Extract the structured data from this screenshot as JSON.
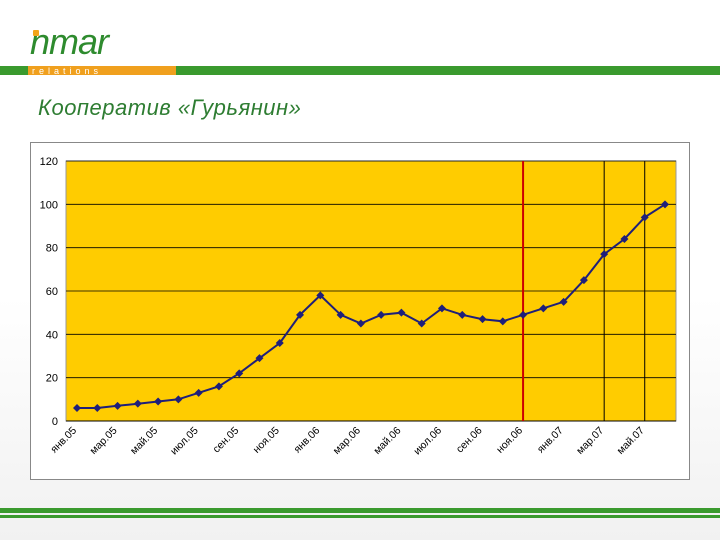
{
  "header": {
    "logo_text": "nmar",
    "logo_sub": "relations",
    "title": "Кооператив «Гурьянин»"
  },
  "colors": {
    "plot_bg": "#FFCC00",
    "line": "#1F1F7A",
    "marker_line": "#CC0000",
    "brand_green": "#3A9A2E",
    "brand_orange": "#F0A01E"
  },
  "chart_data": {
    "type": "line",
    "title": "",
    "xlabel": "",
    "ylabel": "",
    "ylim": [
      0,
      120
    ],
    "yticks": [
      0,
      20,
      40,
      60,
      80,
      100,
      120
    ],
    "grid": true,
    "legend": "none",
    "categories": [
      "янв.05",
      "фев.05",
      "мар.05",
      "апр.05",
      "май.05",
      "июн.05",
      "июл.05",
      "авг.05",
      "сен.05",
      "окт.05",
      "ноя.05",
      "дек.05",
      "янв.06",
      "фев.06",
      "мар.06",
      "апр.06",
      "май.06",
      "июн.06",
      "июл.06",
      "авг.06",
      "сен.06",
      "окт.06",
      "ноя.06",
      "дек.06",
      "янв.07",
      "фев.07",
      "мар.07",
      "апр.07",
      "май.07",
      "июн.07"
    ],
    "tick_labels": [
      "янв.05",
      "мар.05",
      "май.05",
      "июл.05",
      "сен.05",
      "ноя.05",
      "янв.06",
      "мар.06",
      "май.06",
      "июл.06",
      "сен.06",
      "ноя.06",
      "янв.07",
      "мар.07",
      "май.07"
    ],
    "series": [
      {
        "values": [
          6,
          6,
          7,
          8,
          9,
          10,
          13,
          16,
          22,
          29,
          36,
          49,
          58,
          49,
          45,
          49,
          50,
          45,
          52,
          49,
          47,
          46,
          49,
          52,
          55,
          65,
          77,
          84,
          94,
          100
        ]
      }
    ],
    "reference_lines": [
      {
        "x": "ноя.06",
        "color": "red"
      },
      {
        "x": "мар.07",
        "color": "black"
      },
      {
        "x": "май.07",
        "color": "black"
      }
    ]
  }
}
